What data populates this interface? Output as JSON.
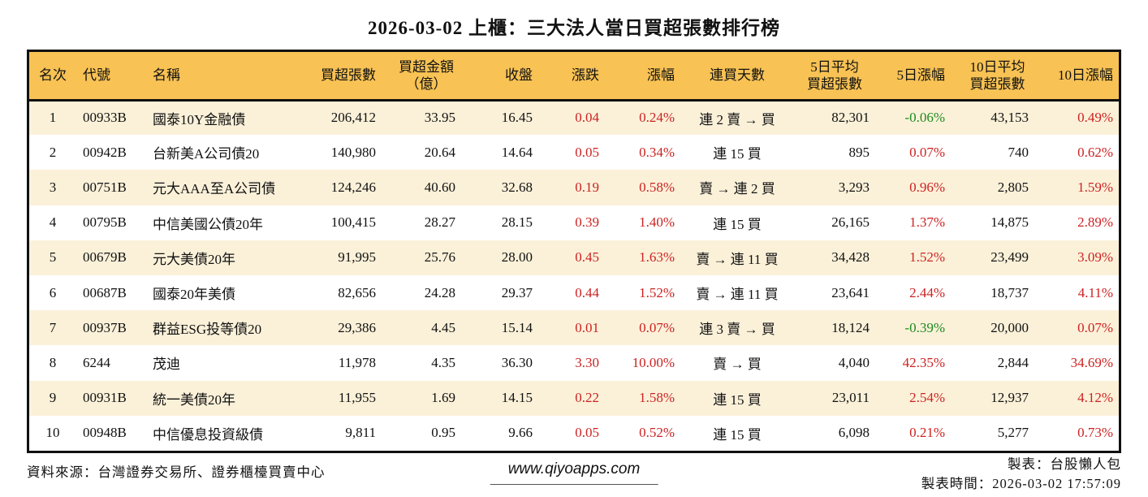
{
  "chart_data": {
    "type": "table",
    "title": "2026-03-02 上櫃：三大法人當日買超張數排行榜",
    "headers": [
      "名次",
      "代號",
      "名稱",
      "買超張數",
      "買超金額\n（億）",
      "收盤",
      "漲跌",
      "漲幅",
      "連買天數",
      "5日平均\n買超張數",
      "5日漲幅",
      "10日平均\n買超張數",
      "10日漲幅"
    ],
    "rows": [
      [
        "1",
        "00933B",
        "國泰10Y金融債",
        "206,412",
        "33.95",
        "16.45",
        "0.04",
        "0.24%",
        "連 2 賣 → 買",
        "82,301",
        "-0.06%",
        "43,153",
        "0.49%"
      ],
      [
        "2",
        "00942B",
        "台新美A公司債20",
        "140,980",
        "20.64",
        "14.64",
        "0.05",
        "0.34%",
        "連 15 買",
        "895",
        "0.07%",
        "740",
        "0.62%"
      ],
      [
        "3",
        "00751B",
        "元大AAA至A公司債",
        "124,246",
        "40.60",
        "32.68",
        "0.19",
        "0.58%",
        "賣 → 連 2 買",
        "3,293",
        "0.96%",
        "2,805",
        "1.59%"
      ],
      [
        "4",
        "00795B",
        "中信美國公債20年",
        "100,415",
        "28.27",
        "28.15",
        "0.39",
        "1.40%",
        "連 15 買",
        "26,165",
        "1.37%",
        "14,875",
        "2.89%"
      ],
      [
        "5",
        "00679B",
        "元大美債20年",
        "91,995",
        "25.76",
        "28.00",
        "0.45",
        "1.63%",
        "賣 → 連 11 買",
        "34,428",
        "1.52%",
        "23,499",
        "3.09%"
      ],
      [
        "6",
        "00687B",
        "國泰20年美債",
        "82,656",
        "24.28",
        "29.37",
        "0.44",
        "1.52%",
        "賣 → 連 11 買",
        "23,641",
        "2.44%",
        "18,737",
        "4.11%"
      ],
      [
        "7",
        "00937B",
        "群益ESG投等債20",
        "29,386",
        "4.45",
        "15.14",
        "0.01",
        "0.07%",
        "連 3 賣 → 買",
        "18,124",
        "-0.39%",
        "20,000",
        "0.07%"
      ],
      [
        "8",
        "6244",
        "茂迪",
        "11,978",
        "4.35",
        "36.30",
        "3.30",
        "10.00%",
        "賣 → 買",
        "4,040",
        "42.35%",
        "2,844",
        "34.69%"
      ],
      [
        "9",
        "00931B",
        "統一美債20年",
        "11,955",
        "1.69",
        "14.15",
        "0.22",
        "1.58%",
        "連 15 買",
        "23,011",
        "2.54%",
        "12,937",
        "4.12%"
      ],
      [
        "10",
        "00948B",
        "中信優息投資級債",
        "9,811",
        "0.95",
        "9.66",
        "0.05",
        "0.52%",
        "連 15 買",
        "6,098",
        "0.21%",
        "5,277",
        "0.73%"
      ]
    ]
  },
  "colors": {
    "header_bg": "#F8C254",
    "row_alt_bg": "#FBF1D9",
    "up_red": "#CC2222",
    "down_green": "#1E8A1E",
    "border": "#111111"
  },
  "footer": {
    "source": "資料來源：台灣證券交易所、證券櫃檯買賣中心",
    "website": "www.qiyoapps.com",
    "author": "製表：台股懶人包",
    "generated": "製表時間：2026-03-02 17:57:09"
  }
}
